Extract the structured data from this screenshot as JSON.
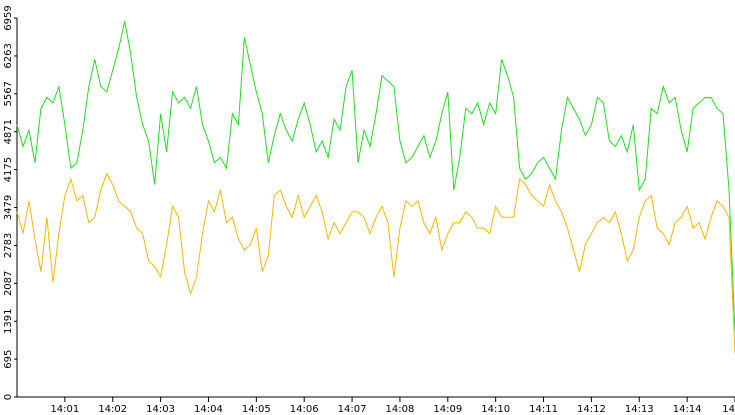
{
  "chart_data": {
    "type": "line",
    "categories": [
      null,
      null,
      null,
      null,
      null,
      null,
      null,
      null,
      "14:01",
      null,
      null,
      null,
      null,
      null,
      null,
      null,
      "14:02",
      null,
      null,
      null,
      null,
      null,
      null,
      null,
      "14:03",
      null,
      null,
      null,
      null,
      null,
      null,
      null,
      "14:04",
      null,
      null,
      null,
      null,
      null,
      null,
      null,
      "14:05",
      null,
      null,
      null,
      null,
      null,
      null,
      null,
      "14:06",
      null,
      null,
      null,
      null,
      null,
      null,
      null,
      "14:07",
      null,
      null,
      null,
      null,
      null,
      null,
      null,
      "14:08",
      null,
      null,
      null,
      null,
      null,
      null,
      null,
      "14:09",
      null,
      null,
      null,
      null,
      null,
      null,
      null,
      "14:10",
      null,
      null,
      null,
      null,
      null,
      null,
      null,
      "14:11",
      null,
      null,
      null,
      null,
      null,
      null,
      null,
      "14:12",
      null,
      null,
      null,
      null,
      null,
      null,
      null,
      "14:13",
      null,
      null,
      null,
      null,
      null,
      null,
      null,
      "14:14",
      null,
      null,
      null,
      null,
      null,
      null,
      null,
      "14"
    ],
    "series": [
      {
        "color": "#22dd22",
        "values": [
          5000,
          4600,
          4900,
          4300,
          5300,
          5500,
          5400,
          5700,
          5000,
          4200,
          4300,
          4900,
          5700,
          6200,
          5700,
          5600,
          6000,
          6400,
          6900,
          6300,
          5500,
          5000,
          4700,
          3900,
          5200,
          4500,
          5600,
          5400,
          5500,
          5300,
          5700,
          5000,
          4700,
          4300,
          4400,
          4200,
          5200,
          5000,
          6600,
          6100,
          5600,
          5200,
          4300,
          4800,
          5200,
          4900,
          4700,
          5100,
          5400,
          5000,
          4500,
          4700,
          4400,
          5100,
          4900,
          5700,
          6000,
          4300,
          4900,
          4600,
          5200,
          5900,
          5800,
          5700,
          4700,
          4300,
          4400,
          4600,
          4800,
          4400,
          4700,
          5200,
          5600,
          3800,
          4400,
          5300,
          5200,
          5400,
          5000,
          5400,
          5200,
          6200,
          5900,
          5500,
          4200,
          4000,
          4100,
          4300,
          4400,
          4200,
          4000,
          4900,
          5500,
          5300,
          5100,
          4800,
          5000,
          5500,
          5400,
          4700,
          4600,
          4800,
          4500,
          5000,
          3800,
          4000,
          5300,
          5200,
          5700,
          5400,
          5500,
          4900,
          4500,
          5300,
          5400,
          5500,
          5500,
          5300,
          5200,
          3800,
          1200
        ]
      },
      {
        "color": "#f5b800",
        "values": [
          3400,
          3000,
          3600,
          2900,
          2300,
          3300,
          2100,
          3000,
          3700,
          4000,
          3600,
          3700,
          3200,
          3300,
          3800,
          4100,
          3900,
          3600,
          3500,
          3400,
          3100,
          3000,
          2500,
          2400,
          2200,
          2800,
          3500,
          3300,
          2300,
          1900,
          2200,
          3000,
          3600,
          3400,
          3800,
          3200,
          3300,
          2900,
          2700,
          2800,
          3100,
          2300,
          2600,
          3700,
          3800,
          3500,
          3300,
          3700,
          3300,
          3500,
          3700,
          3400,
          2900,
          3200,
          3000,
          3200,
          3400,
          3400,
          3300,
          3000,
          3300,
          3500,
          3200,
          2200,
          3100,
          3600,
          3500,
          3600,
          3200,
          3000,
          3300,
          2700,
          3000,
          3200,
          3200,
          3400,
          3300,
          3100,
          3100,
          3000,
          3500,
          3300,
          3300,
          3300,
          4000,
          3900,
          3700,
          3600,
          3500,
          3900,
          3600,
          3400,
          3100,
          2700,
          2300,
          2800,
          3000,
          3200,
          3300,
          3200,
          3400,
          3000,
          2500,
          2700,
          3300,
          3600,
          3700,
          3100,
          3000,
          2800,
          3200,
          3300,
          3500,
          3100,
          3200,
          2900,
          3300,
          3600,
          3500,
          3300,
          800
        ]
      }
    ],
    "ylim": [
      0,
      6959
    ],
    "yticks": [
      0,
      695,
      1391,
      2087,
      2783,
      3479,
      4175,
      4871,
      5567,
      6263,
      6959
    ],
    "grid": false
  }
}
